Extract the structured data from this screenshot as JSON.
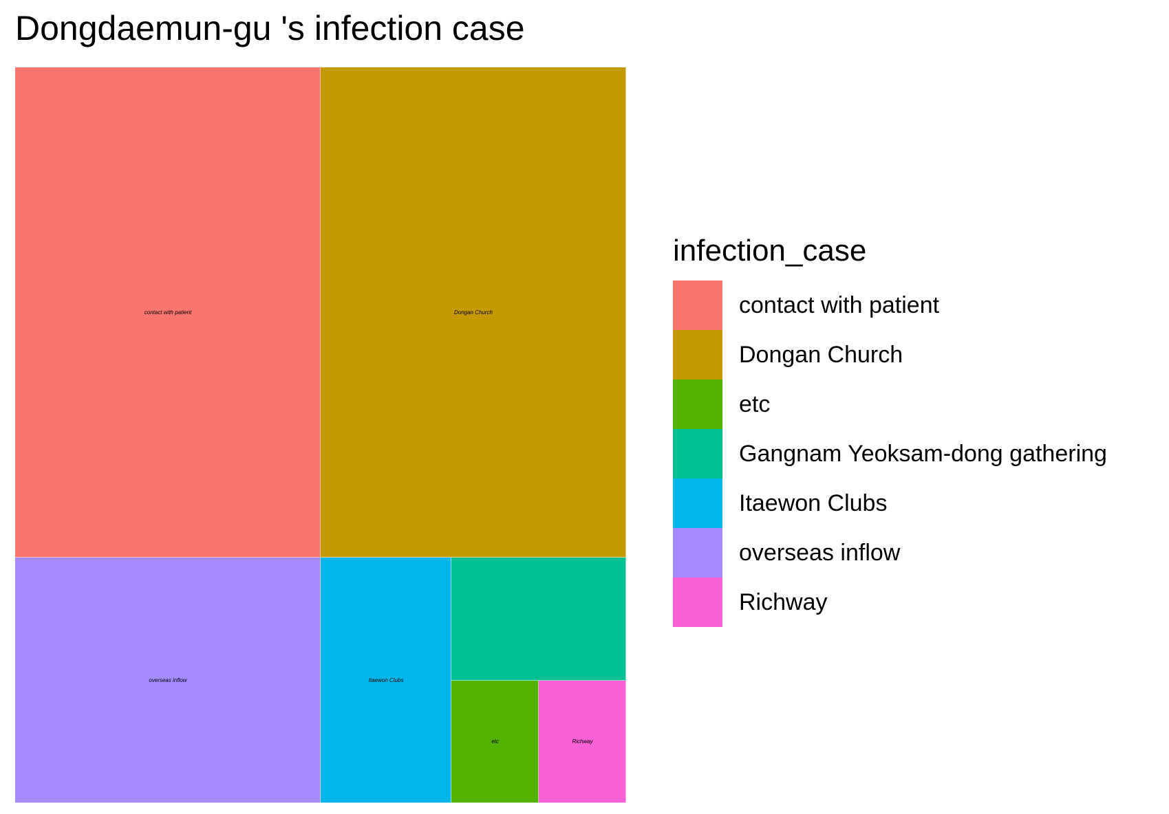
{
  "chart_data": {
    "type": "treemap",
    "title": "Dongdaemun-gu 's infection case",
    "legend_title": "infection_case",
    "legend_position": "right",
    "categories": [
      "contact with patient",
      "Dongan Church",
      "etc",
      "Gangnam Yeoksam-dong gathering",
      "Itaewon Clubs",
      "overseas inflow",
      "Richway"
    ],
    "colors": [
      "#F8766D",
      "#C49A00",
      "#53B400",
      "#00C094",
      "#00B6EB",
      "#A58AFF",
      "#FB61D7"
    ],
    "values": [
      14,
      14,
      1,
      2,
      3,
      7,
      1
    ],
    "tile_labels": [
      "contact with patient",
      "Dongan Church",
      "etc",
      "",
      "Itaewon Clubs",
      "overseas inflow",
      "Richway"
    ]
  }
}
